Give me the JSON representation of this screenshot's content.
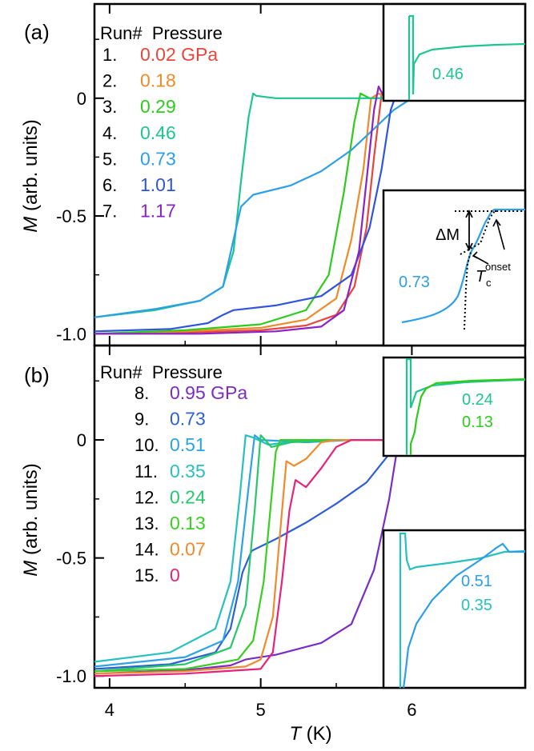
{
  "chart_data": [
    {
      "type": "line",
      "panel_label": "(a)",
      "xlabel": "T (K)",
      "ylabel": "M (arb. units)",
      "xlim": [
        3.9,
        6.75
      ],
      "ylim": [
        -1.05,
        0.4
      ],
      "yticks": [
        "0",
        "-0.5",
        "-1.0"
      ],
      "ytick_values": [
        0,
        -0.5,
        -1.0
      ],
      "xticks": [
        "4",
        "5",
        "6"
      ],
      "xtick_values": [
        4,
        5,
        6
      ],
      "legend_header": "Run#  Pressure",
      "series": [
        {
          "run": "1.",
          "name": "0.02 GPa",
          "color": "#e8453c",
          "points": [
            [
              3.9,
              -1.0
            ],
            [
              4.5,
              -0.995
            ],
            [
              5.0,
              -0.985
            ],
            [
              5.3,
              -0.965
            ],
            [
              5.5,
              -0.92
            ],
            [
              5.62,
              -0.8
            ],
            [
              5.7,
              -0.55
            ],
            [
              5.75,
              -0.25
            ],
            [
              5.8,
              0.02
            ],
            [
              5.84,
              0.01
            ],
            [
              6.0,
              0.0
            ],
            [
              6.75,
              0.0
            ]
          ]
        },
        {
          "run": "2.",
          "name": "0.18",
          "color": "#f08a28",
          "points": [
            [
              3.9,
              -1.0
            ],
            [
              4.5,
              -0.99
            ],
            [
              5.0,
              -0.975
            ],
            [
              5.3,
              -0.94
            ],
            [
              5.5,
              -0.85
            ],
            [
              5.6,
              -0.6
            ],
            [
              5.68,
              -0.3
            ],
            [
              5.73,
              0.0
            ],
            [
              5.78,
              0.02
            ],
            [
              5.85,
              0.0
            ],
            [
              6.75,
              0.0
            ]
          ]
        },
        {
          "run": "3.",
          "name": "0.29",
          "color": "#2ccb1c",
          "points": [
            [
              3.9,
              -1.0
            ],
            [
              4.5,
              -0.985
            ],
            [
              5.0,
              -0.96
            ],
            [
              5.3,
              -0.9
            ],
            [
              5.45,
              -0.75
            ],
            [
              5.55,
              -0.4
            ],
            [
              5.62,
              -0.1
            ],
            [
              5.66,
              0.02
            ],
            [
              5.72,
              0.0
            ],
            [
              6.75,
              0.0
            ]
          ]
        },
        {
          "run": "4.",
          "name": "0.46",
          "color": "#1dc68f",
          "points": [
            [
              3.9,
              -0.93
            ],
            [
              4.3,
              -0.9
            ],
            [
              4.6,
              -0.86
            ],
            [
              4.75,
              -0.8
            ],
            [
              4.82,
              -0.65
            ],
            [
              4.87,
              -0.35
            ],
            [
              4.92,
              -0.08
            ],
            [
              4.95,
              0.02
            ],
            [
              4.97,
              0.01
            ],
            [
              5.1,
              0.0
            ],
            [
              6.75,
              0.0
            ]
          ]
        },
        {
          "run": "5.",
          "name": "0.73",
          "color": "#2c9fe8",
          "points": [
            [
              3.9,
              -0.93
            ],
            [
              4.3,
              -0.895
            ],
            [
              4.6,
              -0.86
            ],
            [
              4.75,
              -0.8
            ],
            [
              4.82,
              -0.6
            ],
            [
              4.87,
              -0.46
            ],
            [
              4.95,
              -0.41
            ],
            [
              5.2,
              -0.37
            ],
            [
              5.4,
              -0.31
            ],
            [
              5.6,
              -0.22
            ],
            [
              5.75,
              -0.13
            ],
            [
              5.88,
              -0.05
            ],
            [
              6.0,
              0.0
            ],
            [
              6.08,
              0.01
            ],
            [
              6.2,
              0.0
            ],
            [
              6.75,
              0.0
            ]
          ]
        },
        {
          "run": "6.",
          "name": "1.01",
          "color": "#2f54e0",
          "points": [
            [
              3.9,
              -0.99
            ],
            [
              4.4,
              -0.98
            ],
            [
              4.65,
              -0.955
            ],
            [
              4.75,
              -0.92
            ],
            [
              4.82,
              -0.9
            ],
            [
              5.1,
              -0.88
            ],
            [
              5.4,
              -0.84
            ],
            [
              5.6,
              -0.75
            ],
            [
              5.72,
              -0.55
            ],
            [
              5.8,
              -0.3
            ],
            [
              5.86,
              -0.05
            ],
            [
              5.91,
              0.04
            ],
            [
              5.96,
              0.0
            ],
            [
              6.75,
              0.0
            ]
          ]
        },
        {
          "run": "7.",
          "name": "1.17",
          "color": "#8a22c8",
          "points": [
            [
              3.9,
              -1.0
            ],
            [
              4.6,
              -1.0
            ],
            [
              5.1,
              -0.99
            ],
            [
              5.4,
              -0.97
            ],
            [
              5.55,
              -0.9
            ],
            [
              5.65,
              -0.65
            ],
            [
              5.7,
              -0.35
            ],
            [
              5.75,
              -0.05
            ],
            [
              5.78,
              0.05
            ],
            [
              5.82,
              0.0
            ],
            [
              6.75,
              0.0
            ]
          ]
        }
      ],
      "insets": [
        {
          "label": "0.46",
          "color": "#1dc68f"
        },
        {
          "label": "0.73",
          "color": "#2c9fe8",
          "annotations": [
            "ΔM",
            "T",
            "c",
            "onset"
          ]
        }
      ]
    },
    {
      "type": "line",
      "panel_label": "(b)",
      "xlabel": "T (K)",
      "ylabel": "M (arb. units)",
      "xlim": [
        3.9,
        6.75
      ],
      "ylim": [
        -1.05,
        0.4
      ],
      "yticks": [
        "0",
        "-0.5",
        "-1.0"
      ],
      "ytick_values": [
        0,
        -0.5,
        -1.0
      ],
      "xticks": [
        "4",
        "5",
        "6"
      ],
      "xtick_values": [
        4,
        5,
        6
      ],
      "legend_header": "Run#  Pressure",
      "series": [
        {
          "run": "8.",
          "name": "0.95 GPa",
          "color": "#7a2cc8",
          "points": [
            [
              3.9,
              -0.99
            ],
            [
              4.5,
              -0.975
            ],
            [
              4.8,
              -0.955
            ],
            [
              4.9,
              -0.93
            ],
            [
              5.1,
              -0.91
            ],
            [
              5.4,
              -0.86
            ],
            [
              5.6,
              -0.78
            ],
            [
              5.75,
              -0.55
            ],
            [
              5.85,
              -0.25
            ],
            [
              5.9,
              -0.05
            ],
            [
              5.94,
              0.02
            ],
            [
              5.98,
              0.0
            ],
            [
              6.75,
              0.0
            ]
          ]
        },
        {
          "run": "9.",
          "name": "0.73",
          "color": "#2f5fd8",
          "points": [
            [
              3.9,
              -0.97
            ],
            [
              4.4,
              -0.95
            ],
            [
              4.7,
              -0.9
            ],
            [
              4.8,
              -0.8
            ],
            [
              4.88,
              -0.56
            ],
            [
              4.94,
              -0.47
            ],
            [
              5.1,
              -0.42
            ],
            [
              5.3,
              -0.35
            ],
            [
              5.5,
              -0.27
            ],
            [
              5.7,
              -0.18
            ],
            [
              5.85,
              -0.06
            ],
            [
              5.95,
              0.0
            ],
            [
              6.08,
              0.01
            ],
            [
              6.2,
              0.0
            ],
            [
              6.75,
              0.0
            ]
          ]
        },
        {
          "run": "10.",
          "name": "0.51",
          "color": "#2ba3e6",
          "points": [
            [
              3.9,
              -0.96
            ],
            [
              4.5,
              -0.92
            ],
            [
              4.75,
              -0.85
            ],
            [
              4.85,
              -0.6
            ],
            [
              4.92,
              -0.2
            ],
            [
              4.96,
              0.02
            ],
            [
              5.0,
              0.0
            ],
            [
              5.3,
              -0.01
            ],
            [
              5.6,
              0.0
            ],
            [
              6.75,
              0.0
            ]
          ]
        },
        {
          "run": "11.",
          "name": "0.35",
          "color": "#27c0c0",
          "points": [
            [
              3.9,
              -0.94
            ],
            [
              4.4,
              -0.9
            ],
            [
              4.7,
              -0.8
            ],
            [
              4.8,
              -0.6
            ],
            [
              4.86,
              -0.25
            ],
            [
              4.9,
              0.02
            ],
            [
              4.95,
              0.01
            ],
            [
              5.05,
              -0.02
            ],
            [
              5.3,
              0.0
            ],
            [
              6.75,
              0.0
            ]
          ]
        },
        {
          "run": "12.",
          "name": "0.24",
          "color": "#27c86a",
          "points": [
            [
              3.9,
              -0.98
            ],
            [
              4.5,
              -0.95
            ],
            [
              4.8,
              -0.88
            ],
            [
              4.9,
              -0.7
            ],
            [
              4.96,
              -0.3
            ],
            [
              5.0,
              0.02
            ],
            [
              5.03,
              0.0
            ],
            [
              5.07,
              -0.03
            ],
            [
              5.2,
              -0.01
            ],
            [
              5.5,
              0.0
            ],
            [
              6.75,
              0.0
            ]
          ]
        },
        {
          "run": "13.",
          "name": "0.13",
          "color": "#38d020",
          "points": [
            [
              3.9,
              -0.98
            ],
            [
              4.5,
              -0.97
            ],
            [
              4.85,
              -0.93
            ],
            [
              4.95,
              -0.85
            ],
            [
              5.02,
              -0.6
            ],
            [
              5.07,
              -0.25
            ],
            [
              5.1,
              -0.05
            ],
            [
              5.13,
              0.0
            ],
            [
              5.3,
              0.0
            ],
            [
              6.75,
              0.0
            ]
          ]
        },
        {
          "run": "14.",
          "name": "0.07",
          "color": "#f08a2c",
          "points": [
            [
              3.9,
              -0.99
            ],
            [
              4.5,
              -0.98
            ],
            [
              4.9,
              -0.96
            ],
            [
              5.0,
              -0.93
            ],
            [
              5.08,
              -0.75
            ],
            [
              5.13,
              -0.38
            ],
            [
              5.17,
              -0.09
            ],
            [
              5.22,
              -0.11
            ],
            [
              5.3,
              -0.08
            ],
            [
              5.4,
              -0.01
            ],
            [
              5.5,
              0.0
            ],
            [
              6.75,
              0.0
            ]
          ]
        },
        {
          "run": "15.",
          "name": "0",
          "color": "#e6237a",
          "points": [
            [
              3.9,
              -1.0
            ],
            [
              4.5,
              -0.99
            ],
            [
              5.0,
              -0.97
            ],
            [
              5.08,
              -0.9
            ],
            [
              5.14,
              -0.6
            ],
            [
              5.19,
              -0.3
            ],
            [
              5.23,
              -0.17
            ],
            [
              5.3,
              -0.2
            ],
            [
              5.4,
              -0.12
            ],
            [
              5.5,
              -0.03
            ],
            [
              5.6,
              0.0
            ],
            [
              5.8,
              0.0
            ],
            [
              5.92,
              0.0
            ],
            [
              6.75,
              0.0
            ]
          ]
        }
      ],
      "insets": [
        {
          "labels": [
            "0.24",
            "0.13"
          ],
          "colors": [
            "#1dc68f",
            "#2ccb1c"
          ]
        },
        {
          "labels": [
            "0.51",
            "0.35"
          ],
          "colors": [
            "#2c9fe8",
            "#27c0c0"
          ]
        }
      ]
    }
  ],
  "labels": {
    "x_axis_label_italic": "T",
    "x_axis_label_unit": " (K)",
    "y_axis_label_italic": "M",
    "y_axis_label_unit": " (arb. units)"
  }
}
